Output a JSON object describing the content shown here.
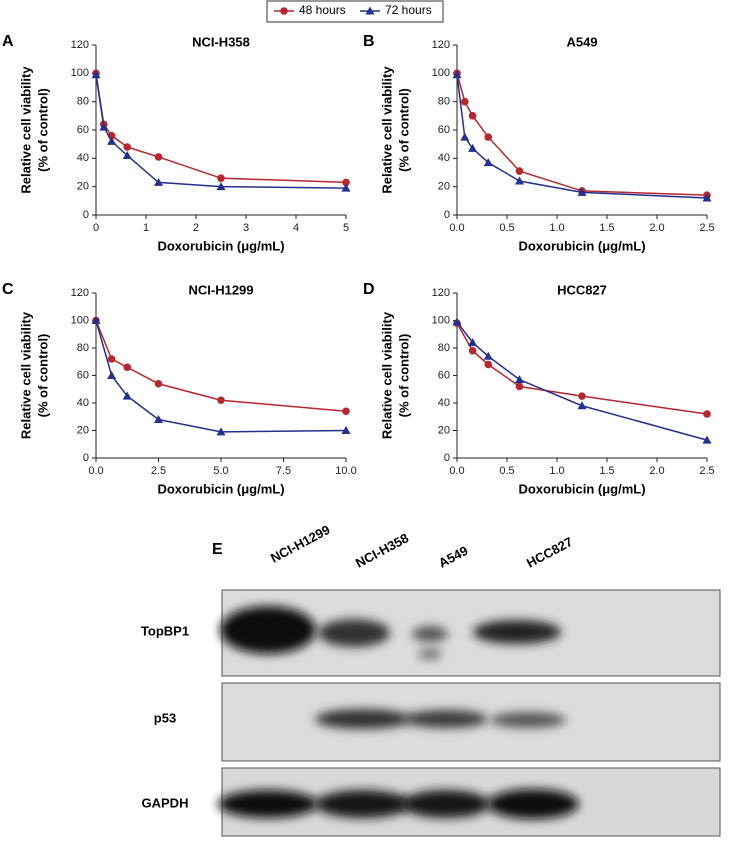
{
  "legend": [
    {
      "name": "48 hours",
      "color": "#b8262e",
      "marker": "circle"
    },
    {
      "name": "72 hours",
      "color": "#22318f",
      "marker": "triangle"
    }
  ],
  "chart_data": [
    {
      "type": "line",
      "panel": "A",
      "title": "NCI-H358",
      "xlabel": "Doxorubicin (μg/mL)",
      "ylabel": [
        "Relative cell viability",
        "(% of control)"
      ],
      "x": [
        0,
        0.156,
        0.3125,
        0.625,
        1.25,
        2.5,
        5
      ],
      "series": [
        {
          "color": "#b8262e",
          "marker": "circle",
          "values": [
            100,
            64,
            56,
            48,
            41,
            26,
            23
          ]
        },
        {
          "color": "#22318f",
          "marker": "triangle",
          "values": [
            99,
            62,
            52,
            42,
            23,
            20,
            19
          ]
        }
      ],
      "xlim": [
        0,
        5
      ],
      "xticks": [
        0,
        1,
        2,
        3,
        4,
        5
      ],
      "ylim": [
        0,
        120
      ],
      "yticks": [
        0,
        20,
        40,
        60,
        80,
        100,
        120
      ]
    },
    {
      "type": "line",
      "panel": "B",
      "title": "A549",
      "xlabel": "Doxorubicin (μg/mL)",
      "ylabel": [
        "Relative cell viability",
        "(% of control)"
      ],
      "x": [
        0,
        0.078,
        0.156,
        0.3125,
        0.625,
        1.25,
        2.5
      ],
      "series": [
        {
          "color": "#b8262e",
          "marker": "circle",
          "values": [
            100,
            80,
            70,
            55,
            31,
            17,
            14
          ]
        },
        {
          "color": "#22318f",
          "marker": "triangle",
          "values": [
            99,
            55,
            47,
            37,
            24,
            16,
            12
          ]
        }
      ],
      "xlim": [
        0,
        2.5
      ],
      "xticks": [
        {
          "value": 0,
          "label": "0.0"
        },
        {
          "value": 0.5,
          "label": "0.5"
        },
        {
          "value": 1,
          "label": "1.0"
        },
        {
          "value": 1.5,
          "label": "1.5"
        },
        {
          "value": 2,
          "label": "2.0"
        },
        2.5
      ],
      "ylim": [
        0,
        120
      ],
      "yticks": [
        0,
        20,
        40,
        60,
        80,
        100,
        120
      ]
    },
    {
      "type": "line",
      "panel": "C",
      "title": "NCI-H1299",
      "xlabel": "Doxorubicin (μg/mL)",
      "ylabel": [
        "Relative cell viability",
        "(% of control)"
      ],
      "x": [
        0,
        0.625,
        1.25,
        2.5,
        5,
        10
      ],
      "series": [
        {
          "color": "#b8262e",
          "marker": "circle",
          "values": [
            100,
            72,
            66,
            54,
            42,
            34
          ]
        },
        {
          "color": "#22318f",
          "marker": "triangle",
          "values": [
            100,
            60,
            45,
            28,
            19,
            20
          ]
        }
      ],
      "xlim": [
        0,
        10
      ],
      "xticks": [
        {
          "value": 0,
          "label": "0.0"
        },
        2.5,
        {
          "value": 5,
          "label": "5.0"
        },
        7.5,
        {
          "value": 10,
          "label": "10.0"
        }
      ],
      "ylim": [
        0,
        120
      ],
      "yticks": [
        0,
        20,
        40,
        60,
        80,
        100,
        120
      ]
    },
    {
      "type": "line",
      "panel": "D",
      "title": "HCC827",
      "xlabel": "Doxorubicin (μg/mL)",
      "ylabel": [
        "Relative cell viability",
        "(% of control)"
      ],
      "x": [
        0,
        0.156,
        0.3125,
        0.625,
        1.25,
        2.5
      ],
      "series": [
        {
          "color": "#b8262e",
          "marker": "circle",
          "values": [
            98,
            78,
            68,
            52,
            45,
            32
          ]
        },
        {
          "color": "#22318f",
          "marker": "triangle",
          "values": [
            99,
            84,
            74,
            57,
            38,
            13
          ]
        }
      ],
      "xlim": [
        0,
        2.5
      ],
      "xticks": [
        {
          "value": 0,
          "label": "0.0"
        },
        {
          "value": 0.5,
          "label": "0.5"
        },
        {
          "value": 1,
          "label": "1.0"
        },
        {
          "value": 1.5,
          "label": "1.5"
        },
        {
          "value": 2,
          "label": "2.0"
        },
        2.5
      ],
      "ylim": [
        0,
        120
      ],
      "yticks": [
        0,
        20,
        40,
        60,
        80,
        100,
        120
      ]
    }
  ],
  "blot": {
    "panel": "E",
    "lanes": [
      "NCI-H1299",
      "NCI-H358",
      "A549",
      "HCC827"
    ],
    "rows": [
      "TopBP1",
      "p53",
      "GAPDH"
    ]
  }
}
